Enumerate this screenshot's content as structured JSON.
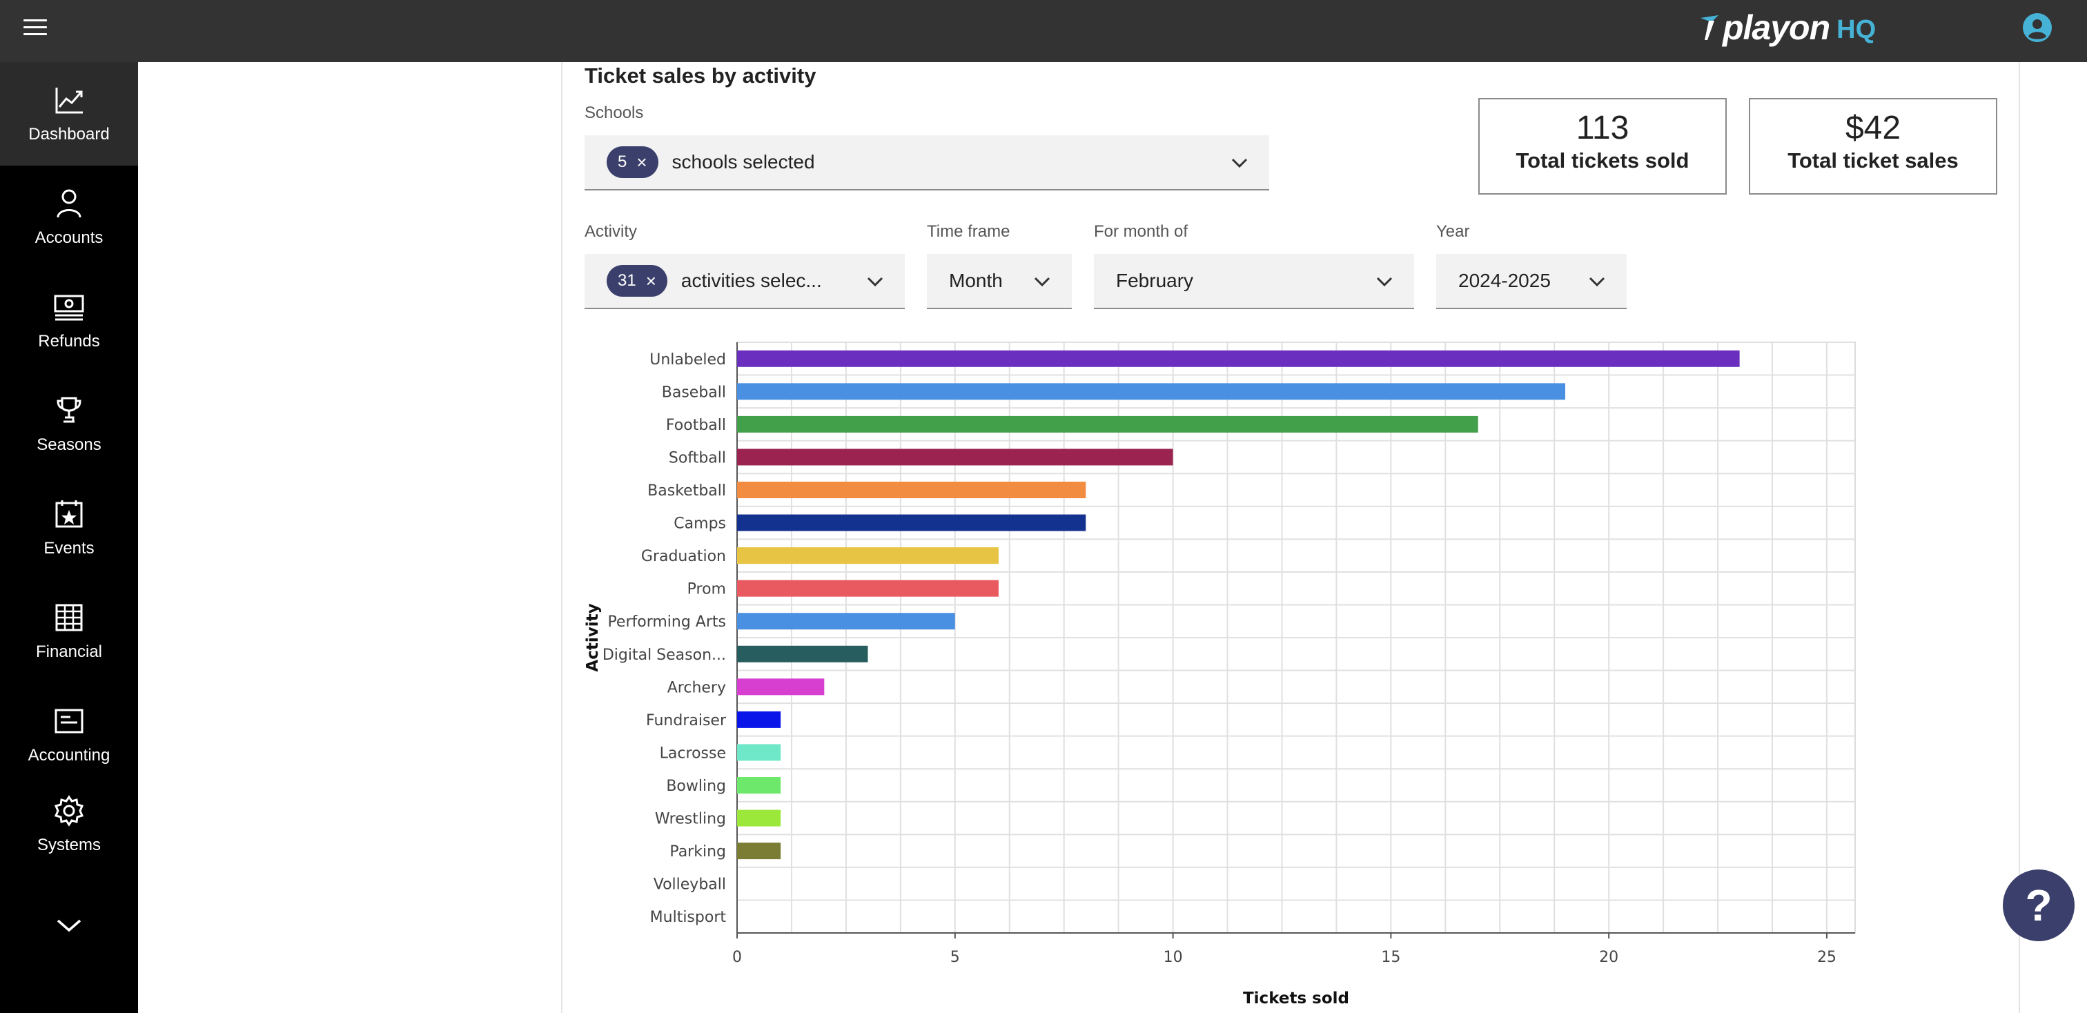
{
  "brand": {
    "logo_text": "playon",
    "logo_suffix": "HQ"
  },
  "sidebar": {
    "items": [
      {
        "label": "Dashboard"
      },
      {
        "label": "Accounts"
      },
      {
        "label": "Refunds"
      },
      {
        "label": "Seasons"
      },
      {
        "label": "Events"
      },
      {
        "label": "Financial"
      },
      {
        "label": "Accounting"
      },
      {
        "label": "Systems"
      }
    ]
  },
  "page": {
    "title": "Ticket sales by activity"
  },
  "filters": {
    "schools": {
      "label": "Schools",
      "count": "5",
      "value": "schools selected"
    },
    "activity": {
      "label": "Activity",
      "count": "31",
      "value": "activities selec..."
    },
    "timeframe": {
      "label": "Time frame",
      "value": "Month"
    },
    "month": {
      "label": "For month of",
      "value": "February"
    },
    "year": {
      "label": "Year",
      "value": "2024-2025"
    }
  },
  "kpis": {
    "tickets": {
      "value": "113",
      "label": "Total tickets sold"
    },
    "sales": {
      "value": "$42",
      "label": "Total ticket sales"
    }
  },
  "chart_data": {
    "type": "bar",
    "orientation": "horizontal",
    "title": "",
    "xlabel": "Tickets sold",
    "ylabel": "Activity",
    "xlim": [
      0,
      25
    ],
    "xticks": [
      0,
      5,
      10,
      15,
      20,
      25
    ],
    "grid": true,
    "categories": [
      "Unlabeled",
      "Baseball",
      "Football",
      "Softball",
      "Basketball",
      "Camps",
      "Graduation",
      "Prom",
      "Performing Arts",
      "Digital Season...",
      "Archery",
      "Fundraiser",
      "Lacrosse",
      "Bowling",
      "Wrestling",
      "Parking",
      "Volleyball",
      "Multisport"
    ],
    "values": [
      23,
      19,
      17,
      10,
      8,
      8,
      6,
      6,
      5,
      3,
      2,
      1,
      1,
      1,
      1,
      1,
      0,
      0
    ],
    "colors": [
      "#6a2fbf",
      "#4a90e2",
      "#43a04a",
      "#9b2350",
      "#f28c40",
      "#13318f",
      "#e8c444",
      "#e85a5f",
      "#4a90e2",
      "#275d5f",
      "#d63fcf",
      "#0a15ea",
      "#6ee8c8",
      "#6ee86a",
      "#9be83a",
      "#7a7d33",
      "#cccccc",
      "#cccccc"
    ]
  },
  "help": {
    "label": "?"
  }
}
